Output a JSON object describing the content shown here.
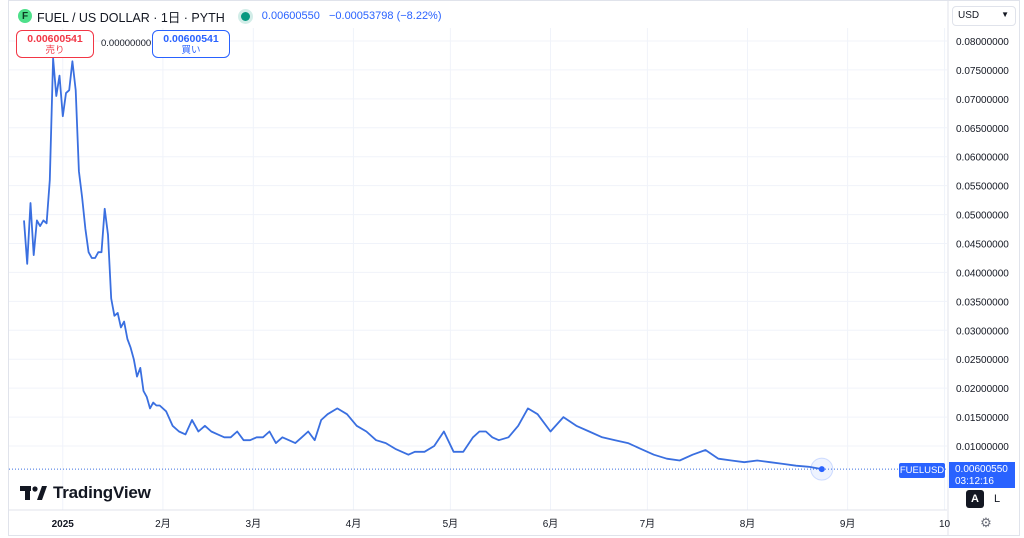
{
  "header": {
    "symbol_title": "FUEL / US DOLLAR · 1日 · PYTH",
    "logo_letter": "F",
    "ohlc_last": "0.00600550",
    "ohlc_change": "−0.00053798 (−8.22%)"
  },
  "trade": {
    "sell_price": "0.00600541",
    "sell_label": "売り",
    "spread": "0.00000000",
    "buy_price": "0.00600541",
    "buy_label": "買い"
  },
  "currency": {
    "selected": "USD"
  },
  "brand": "TradingView",
  "last_price_tag": {
    "symbol": "FUELUSD",
    "price": "0.00600550",
    "countdown": "03:12:16"
  },
  "scale_buttons": {
    "auto": "A",
    "log": "L"
  },
  "colors": {
    "line": "#3a6fe0",
    "accent": "#2962ff",
    "sell": "#f23645",
    "grid": "#f0f3fa"
  },
  "chart_data": {
    "type": "line",
    "title": "FUEL / US DOLLAR · 1日 · PYTH",
    "x_tick_labels": [
      "2025",
      "2月",
      "3月",
      "4月",
      "5月",
      "6月",
      "7月",
      "8月",
      "9月",
      "10"
    ],
    "y_tick_labels": [
      "0.08000000",
      "0.07500000",
      "0.07000000",
      "0.06500000",
      "0.06000000",
      "0.05500000",
      "0.05000000",
      "0.04500000",
      "0.04000000",
      "0.03500000",
      "0.03000000",
      "0.02500000",
      "0.02000000",
      "0.01500000",
      "0.01000000"
    ],
    "ylim": [
      0.0045,
      0.0835
    ],
    "xlim": [
      "2024-12-20",
      "2025-10-03"
    ],
    "grid": true,
    "series": [
      {
        "x": [
          "2024-12-20",
          "2024-12-21",
          "2024-12-22",
          "2024-12-23",
          "2024-12-24",
          "2024-12-25",
          "2024-12-26",
          "2024-12-27",
          "2024-12-28",
          "2024-12-29",
          "2024-12-30",
          "2024-12-31",
          "2025-01-01",
          "2025-01-02",
          "2025-01-03",
          "2025-01-04",
          "2025-01-05",
          "2025-01-06",
          "2025-01-07",
          "2025-01-08",
          "2025-01-09",
          "2025-01-10",
          "2025-01-11",
          "2025-01-12",
          "2025-01-13",
          "2025-01-14",
          "2025-01-15",
          "2025-01-16",
          "2025-01-17",
          "2025-01-18",
          "2025-01-19",
          "2025-01-20",
          "2025-01-21",
          "2025-01-22",
          "2025-01-23",
          "2025-01-24",
          "2025-01-25",
          "2025-01-26",
          "2025-01-27",
          "2025-01-28",
          "2025-01-29",
          "2025-01-30",
          "2025-01-31",
          "2025-02-02",
          "2025-02-04",
          "2025-02-06",
          "2025-02-08",
          "2025-02-10",
          "2025-02-12",
          "2025-02-14",
          "2025-02-16",
          "2025-02-18",
          "2025-02-20",
          "2025-02-22",
          "2025-02-24",
          "2025-02-26",
          "2025-02-28",
          "2025-03-02",
          "2025-03-04",
          "2025-03-06",
          "2025-03-08",
          "2025-03-10",
          "2025-03-12",
          "2025-03-14",
          "2025-03-16",
          "2025-03-18",
          "2025-03-20",
          "2025-03-22",
          "2025-03-24",
          "2025-03-27",
          "2025-03-30",
          "2025-04-02",
          "2025-04-05",
          "2025-04-08",
          "2025-04-11",
          "2025-04-14",
          "2025-04-16",
          "2025-04-18",
          "2025-04-20",
          "2025-04-23",
          "2025-04-26",
          "2025-04-29",
          "2025-05-02",
          "2025-05-05",
          "2025-05-08",
          "2025-05-10",
          "2025-05-12",
          "2025-05-14",
          "2025-05-16",
          "2025-05-19",
          "2025-05-22",
          "2025-05-25",
          "2025-05-28",
          "2025-06-01",
          "2025-06-05",
          "2025-06-09",
          "2025-06-13",
          "2025-06-17",
          "2025-06-21",
          "2025-06-25",
          "2025-06-29",
          "2025-07-03",
          "2025-07-07",
          "2025-07-11",
          "2025-07-15",
          "2025-07-19",
          "2025-07-23",
          "2025-07-27",
          "2025-07-31",
          "2025-08-04",
          "2025-08-08",
          "2025-08-12",
          "2025-08-16",
          "2025-08-20",
          "2025-08-24"
        ],
        "y": [
          0.049,
          0.0415,
          0.052,
          0.043,
          0.049,
          0.048,
          0.049,
          0.0485,
          0.056,
          0.077,
          0.0705,
          0.074,
          0.067,
          0.071,
          0.0715,
          0.0765,
          0.0715,
          0.0575,
          0.053,
          0.0475,
          0.0435,
          0.0425,
          0.0425,
          0.0435,
          0.0435,
          0.051,
          0.0465,
          0.0355,
          0.0325,
          0.033,
          0.0305,
          0.0315,
          0.0285,
          0.027,
          0.025,
          0.022,
          0.0235,
          0.0195,
          0.0185,
          0.0165,
          0.0175,
          0.017,
          0.017,
          0.016,
          0.0135,
          0.0125,
          0.012,
          0.0145,
          0.0125,
          0.0135,
          0.0125,
          0.012,
          0.0115,
          0.0115,
          0.0125,
          0.011,
          0.011,
          0.0115,
          0.0115,
          0.0125,
          0.0105,
          0.0115,
          0.011,
          0.0105,
          0.0115,
          0.0125,
          0.011,
          0.0145,
          0.0155,
          0.0165,
          0.0155,
          0.0135,
          0.0125,
          0.011,
          0.0105,
          0.0095,
          0.009,
          0.0085,
          0.009,
          0.009,
          0.01,
          0.0125,
          0.009,
          0.009,
          0.0115,
          0.0125,
          0.0125,
          0.0115,
          0.011,
          0.0115,
          0.0135,
          0.0165,
          0.0155,
          0.0125,
          0.015,
          0.0135,
          0.0125,
          0.0115,
          0.011,
          0.0105,
          0.0095,
          0.0085,
          0.0078,
          0.0075,
          0.0085,
          0.0093,
          0.0078,
          0.0075,
          0.0072,
          0.0075,
          0.0072,
          0.0069,
          0.0066,
          0.0064,
          0.0060055
        ]
      }
    ]
  }
}
